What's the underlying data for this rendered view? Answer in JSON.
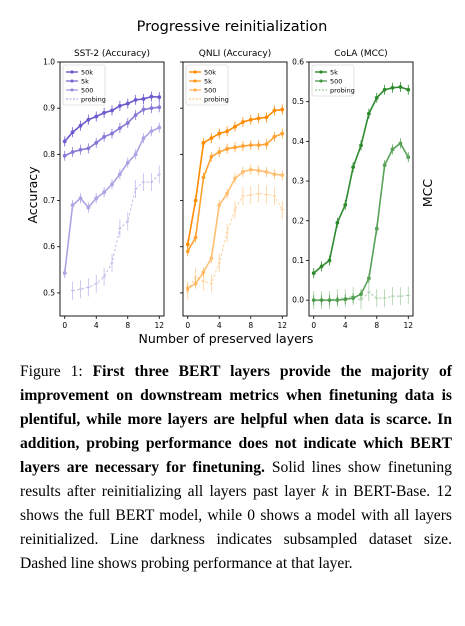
{
  "figure": {
    "title": "Progressive reinitialization",
    "xlabel": "Number of preserved layers",
    "ylabel_left": "Accuracy",
    "ylabel_right": "MCC"
  },
  "caption": {
    "label": "Figure 1:",
    "bold": "First three BERT layers provide the majority of improvement on downstream metrics when finetuning data is plentiful, while more layers are helpful when data is scarce. In addition, probing performance does not indicate which BERT layers are necessary for finetuning.",
    "text1": "Solid lines show finetuning results after reinitializing all layers past layer",
    "k": "k",
    "text2": "in BERT-Base. 12 shows the full BERT model, while 0 shows a model with all layers reinitialized. Line darkness indicates subsampled dataset size. Dashed line shows probing performance at that layer."
  },
  "chart_data": [
    {
      "type": "line",
      "title": "SST-2 (Accuracy)",
      "color": "#6a5acd",
      "x": [
        0,
        1,
        2,
        3,
        4,
        5,
        6,
        7,
        8,
        9,
        10,
        11,
        12
      ],
      "ylim": [
        0.45,
        1.0
      ],
      "yticks": [
        "0.5",
        "0.6",
        "0.7",
        "0.8",
        "0.9",
        "1.0"
      ],
      "ytick_values": [
        0.5,
        0.6,
        0.7,
        0.8,
        0.9,
        1.0
      ],
      "xticks": [
        "0",
        "4",
        "8",
        "12"
      ],
      "series": [
        {
          "name": "50k",
          "style": "solid",
          "alpha": 1.0,
          "values": [
            0.828,
            0.848,
            0.862,
            0.875,
            0.882,
            0.89,
            0.895,
            0.905,
            0.91,
            0.918,
            0.92,
            0.925,
            0.924
          ]
        },
        {
          "name": "5k",
          "style": "solid",
          "alpha": 0.8,
          "values": [
            0.797,
            0.805,
            0.81,
            0.813,
            0.825,
            0.838,
            0.845,
            0.857,
            0.868,
            0.885,
            0.897,
            0.9,
            0.902
          ]
        },
        {
          "name": "500",
          "style": "solid",
          "alpha": 0.55,
          "values": [
            0.543,
            0.69,
            0.705,
            0.685,
            0.705,
            0.718,
            0.735,
            0.757,
            0.782,
            0.8,
            0.835,
            0.85,
            0.858
          ]
        },
        {
          "name": "probing",
          "style": "dashed",
          "alpha": 0.4,
          "values": [
            null,
            0.505,
            0.508,
            0.512,
            0.52,
            0.535,
            0.565,
            0.64,
            0.655,
            0.725,
            0.74,
            0.74,
            0.757
          ]
        }
      ]
    },
    {
      "type": "line",
      "title": "QNLI (Accuracy)",
      "color": "#ff8c00",
      "x": [
        0,
        1,
        2,
        3,
        4,
        5,
        6,
        7,
        8,
        9,
        10,
        11,
        12
      ],
      "ylim": [
        0.45,
        1.0
      ],
      "yticks": [
        "0.5",
        "0.6",
        "0.7",
        "0.8",
        "0.9",
        "1.0"
      ],
      "ytick_values": [
        0.5,
        0.6,
        0.7,
        0.8,
        0.9,
        1.0
      ],
      "xticks": [
        "0",
        "4",
        "8",
        "12"
      ],
      "series": [
        {
          "name": "50k",
          "style": "solid",
          "alpha": 1.0,
          "values": [
            0.605,
            0.7,
            0.825,
            0.835,
            0.845,
            0.85,
            0.86,
            0.87,
            0.875,
            0.878,
            0.88,
            0.895,
            0.897
          ]
        },
        {
          "name": "5k",
          "style": "solid",
          "alpha": 0.8,
          "values": [
            0.59,
            0.62,
            0.75,
            0.795,
            0.805,
            0.812,
            0.815,
            0.818,
            0.82,
            0.82,
            0.822,
            0.838,
            0.845
          ]
        },
        {
          "name": "500",
          "style": "solid",
          "alpha": 0.55,
          "values": [
            0.51,
            0.52,
            0.545,
            0.575,
            0.69,
            0.715,
            0.748,
            0.762,
            0.767,
            0.765,
            0.762,
            0.757,
            0.755
          ]
        },
        {
          "name": "probing",
          "style": "dashed",
          "alpha": 0.4,
          "values": [
            0.505,
            0.535,
            0.525,
            0.52,
            0.565,
            0.63,
            0.68,
            0.71,
            0.712,
            0.715,
            0.713,
            0.71,
            0.68
          ]
        }
      ]
    },
    {
      "type": "line",
      "title": "CoLA (MCC)",
      "color": "#2e8b2e",
      "x": [
        0,
        1,
        2,
        3,
        4,
        5,
        6,
        7,
        8,
        9,
        10,
        11,
        12
      ],
      "ylim": [
        -0.04,
        0.6
      ],
      "yticks": [
        "0.0",
        "0.1",
        "0.2",
        "0.3",
        "0.4",
        "0.5",
        "0.6"
      ],
      "ytick_values": [
        0.0,
        0.1,
        0.2,
        0.3,
        0.4,
        0.5,
        0.6
      ],
      "xticks": [
        "0",
        "4",
        "8",
        "12"
      ],
      "series": [
        {
          "name": "5k",
          "style": "solid",
          "alpha": 1.0,
          "values": [
            0.068,
            0.085,
            0.1,
            0.195,
            0.24,
            0.335,
            0.39,
            0.47,
            0.51,
            0.53,
            0.535,
            0.537,
            0.53
          ]
        },
        {
          "name": "500",
          "style": "solid",
          "alpha": 0.8,
          "values": [
            0.0,
            0.0,
            0.0,
            0.0,
            0.002,
            0.005,
            0.015,
            0.055,
            0.18,
            0.34,
            0.38,
            0.395,
            0.36
          ]
        },
        {
          "name": "probing",
          "style": "dashed",
          "alpha": 0.4,
          "values": [
            0.0,
            0.0,
            0.0,
            0.005,
            0.005,
            0.01,
            0.0,
            0.02,
            0.005,
            0.005,
            0.01,
            0.01,
            0.012
          ]
        }
      ]
    }
  ]
}
